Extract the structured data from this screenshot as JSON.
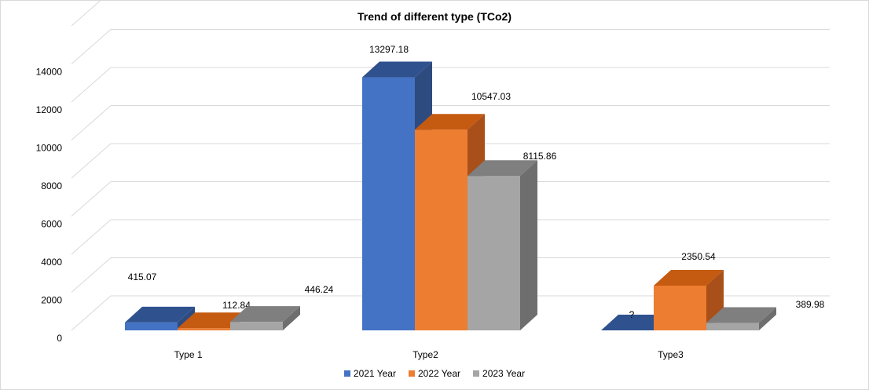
{
  "chart_data": {
    "type": "bar",
    "title": "Trend of different type (TCo2)",
    "categories": [
      "Type 1",
      "Type2",
      "Type3"
    ],
    "series": [
      {
        "name": "2021 Year",
        "values": [
          415.07,
          13297.18,
          null
        ],
        "labels": [
          "415.07",
          "13297.18",
          "?"
        ],
        "color": "#4472C4",
        "top": "#2F528F",
        "side": "#2E4B80"
      },
      {
        "name": "2022 Year",
        "values": [
          112.84,
          10547.03,
          2350.54
        ],
        "labels": [
          "112.84",
          "10547.03",
          "2350.54"
        ],
        "color": "#ED7D31",
        "top": "#C55A11",
        "side": "#A9501A"
      },
      {
        "name": "2023 Year",
        "values": [
          446.24,
          8115.86,
          389.98
        ],
        "labels": [
          "446.24",
          "8115.86",
          "389.98"
        ],
        "color": "#A5A5A5",
        "top": "#7F7F7F",
        "side": "#6E6E6E"
      }
    ],
    "yticks": [
      "0",
      "2000",
      "4000",
      "6000",
      "8000",
      "10000",
      "12000",
      "14000"
    ],
    "ylim": [
      0,
      16000
    ],
    "grid": true,
    "legend_position": "bottom"
  }
}
